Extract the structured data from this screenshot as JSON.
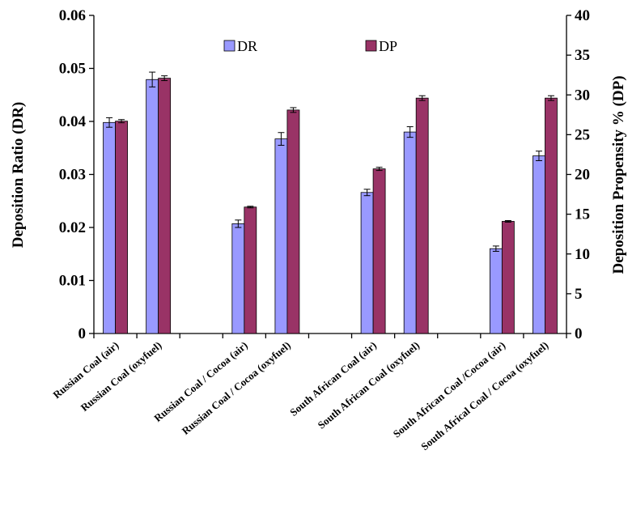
{
  "chart_data": {
    "type": "bar",
    "categories": [
      "Russian Coal (air)",
      "Russian Coal (oxyfuel)",
      "",
      "Russian Coal / Cocoa (air)",
      "Russian Coal / Cocoa (oxyfuel)",
      "",
      "South African Coal  (air)",
      "South African Coal (oxyfuel)",
      "",
      "South African Coal /Cocoa (air)",
      "South Africal Coal / Cocoa (oxyfuel)"
    ],
    "series": [
      {
        "name": "DR",
        "axis": "left",
        "color": "#9999ff",
        "values": [
          0.0398,
          0.0479,
          null,
          0.0207,
          0.0367,
          null,
          0.0266,
          0.038,
          null,
          0.016,
          0.0335
        ],
        "error": [
          0.0009,
          0.0014,
          null,
          0.0007,
          0.0012,
          null,
          0.0006,
          0.001,
          null,
          0.0005,
          0.0009
        ]
      },
      {
        "name": "DP",
        "axis": "right",
        "color": "#993366",
        "values": [
          26.7,
          32.1,
          null,
          15.9,
          28.1,
          null,
          20.7,
          29.6,
          null,
          14.1,
          29.6
        ],
        "error": [
          0.2,
          0.3,
          null,
          0.1,
          0.3,
          null,
          0.2,
          0.3,
          null,
          0.1,
          0.3
        ]
      }
    ],
    "ylabel": "Deposition Ratio (DR)",
    "y2label": "Deposition Propensity  % (DP)",
    "ylim": [
      0,
      0.06
    ],
    "y2lim": [
      0,
      40
    ],
    "yticks": [
      "0",
      "0.01",
      "0.02",
      "0.03",
      "0.04",
      "0.05",
      "0.06"
    ],
    "y2ticks": [
      "0",
      "5",
      "10",
      "15",
      "20",
      "25",
      "30",
      "35",
      "40"
    ],
    "legend_position": "top-center",
    "grid": false
  },
  "colors": {
    "DR": "#9999ff",
    "DP": "#993366",
    "axis": "#000000"
  }
}
